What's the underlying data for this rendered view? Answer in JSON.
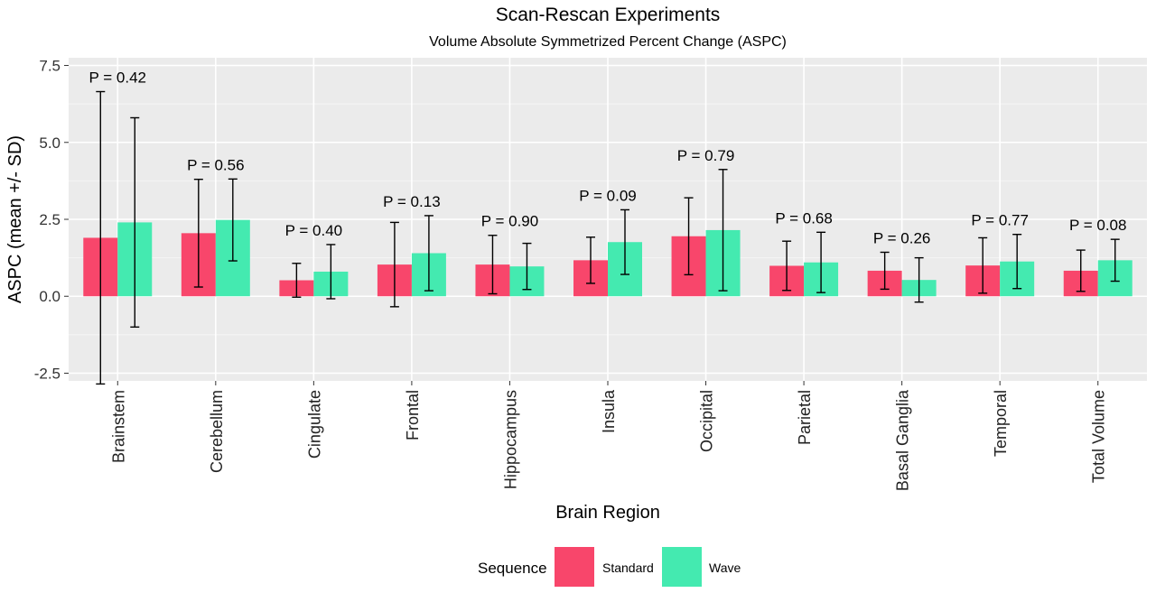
{
  "chart_data": {
    "type": "bar",
    "title": "Scan-Rescan Experiments",
    "subtitle": "Volume Absolute Symmetrized Percent Change (ASPC)",
    "xlabel": "Brain Region",
    "ylabel": "ASPC (mean +/- SD)",
    "ylim": [
      -2.75,
      7.75
    ],
    "yticks": [
      -2.5,
      0.0,
      2.5,
      5.0,
      7.5
    ],
    "ytick_labels": [
      "-2.5",
      "0.0",
      "2.5",
      "5.0",
      "7.5"
    ],
    "grid": true,
    "legend": {
      "title": "Sequence",
      "position": "bottom"
    },
    "categories": [
      "Brainstem",
      "Cerebellum",
      "Cingulate",
      "Frontal",
      "Hippocampus",
      "Insula",
      "Occipital",
      "Parietal",
      "Basal Ganglia",
      "Temporal",
      "Total Volume"
    ],
    "series": [
      {
        "name": "Standard",
        "color": "#F8466B",
        "values": [
          1.9,
          2.05,
          0.52,
          1.03,
          1.03,
          1.17,
          1.95,
          0.99,
          0.83,
          1.0,
          0.83
        ],
        "sd": [
          4.75,
          1.75,
          0.55,
          1.37,
          0.95,
          0.75,
          1.25,
          0.8,
          0.6,
          0.9,
          0.67
        ]
      },
      {
        "name": "Wave",
        "color": "#44EAB0",
        "values": [
          2.4,
          2.48,
          0.8,
          1.4,
          0.97,
          1.76,
          2.15,
          1.1,
          0.53,
          1.13,
          1.17
        ],
        "sd": [
          3.4,
          1.33,
          0.88,
          1.22,
          0.75,
          1.05,
          1.97,
          0.98,
          0.72,
          0.88,
          0.68
        ]
      }
    ],
    "annotations": [
      "P = 0.42",
      "P = 0.56",
      "P = 0.40",
      "P = 0.13",
      "P = 0.90",
      "P = 0.09",
      "P = 0.79",
      "P = 0.68",
      "P = 0.26",
      "P = 0.77",
      "P = 0.08"
    ]
  }
}
